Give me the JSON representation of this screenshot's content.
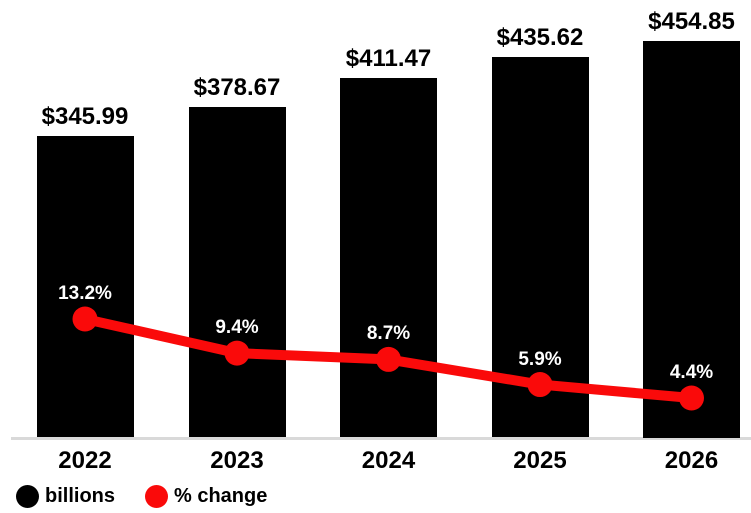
{
  "colors": {
    "bar": "#000000",
    "line": "#fa0a0a",
    "axis_line": "#d9d9d9",
    "value_label": "#000000",
    "pct_label": "#ffffff",
    "background": "#ffffff"
  },
  "chart_data": {
    "type": "bar",
    "subtype": "bar-line-combo",
    "title": "",
    "categories": [
      "2022",
      "2023",
      "2024",
      "2025",
      "2026"
    ],
    "series": [
      {
        "name": "billions",
        "type": "bar",
        "values": [
          345.99,
          378.67,
          411.47,
          435.62,
          454.85
        ],
        "labels": [
          "$345.99",
          "$378.67",
          "$411.47",
          "$435.62",
          "$454.85"
        ],
        "color": "#000000"
      },
      {
        "name": "% change",
        "type": "line",
        "values": [
          13.2,
          9.4,
          8.7,
          5.9,
          4.4
        ],
        "labels": [
          "13.2%",
          "9.4%",
          "8.7%",
          "5.9%",
          "4.4%"
        ],
        "color": "#fa0a0a"
      }
    ],
    "legend": [
      {
        "label": "billions",
        "color": "#000000",
        "marker": "circle"
      },
      {
        "label": "% change",
        "color": "#fa0a0a",
        "marker": "circle"
      }
    ],
    "legend_position": "bottom-left",
    "gridlines": false,
    "y_axis_visible": false,
    "value_labels_position": "above-bars",
    "pct_labels_position": "above-line-points"
  }
}
